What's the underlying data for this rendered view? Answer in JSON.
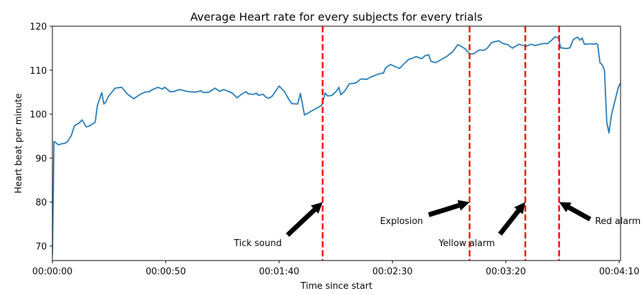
{
  "chart_data": {
    "type": "line",
    "title": "Average Heart rate for every subjects for every trials",
    "xlabel": "Time since start",
    "ylabel": "Heart beat per minute",
    "xlim": [
      0,
      250.6
    ],
    "ylim": [
      66.7,
      120
    ],
    "grid": false,
    "x_ticks": [
      {
        "value": 0,
        "label": "00:00:00"
      },
      {
        "value": 50,
        "label": "00:00:50"
      },
      {
        "value": 100,
        "label": "00:01:40"
      },
      {
        "value": 150,
        "label": "00:02:30"
      },
      {
        "value": 200,
        "label": "00:03:20"
      },
      {
        "value": 250,
        "label": "00:04:10"
      }
    ],
    "y_ticks": [
      {
        "value": 70,
        "label": "70"
      },
      {
        "value": 80,
        "label": "80"
      },
      {
        "value": 90,
        "label": "90"
      },
      {
        "value": 100,
        "label": "100"
      },
      {
        "value": 110,
        "label": "110"
      },
      {
        "value": 120,
        "label": "120"
      }
    ],
    "series": [
      {
        "name": "Average heart rate",
        "color": "#1f77b4",
        "x": [
          0,
          0.7,
          2.7,
          4.3,
          5.3,
          6.8,
          8.3,
          9.8,
          11.9,
          13.1,
          14.9,
          16.4,
          18.9,
          19.8,
          21.8,
          22.7,
          23.5,
          24.7,
          27.6,
          30.6,
          33.2,
          35.9,
          38.7,
          40.8,
          42.8,
          43.8,
          46.6,
          48.4,
          49.6,
          51.9,
          53.4,
          56.0,
          60.0,
          63.0,
          65.6,
          66.6,
          69.1,
          71.7,
          73.7,
          75.7,
          79.3,
          81.5,
          83.3,
          85.4,
          86.4,
          88.9,
          89.9,
          90.9,
          93.0,
          94.0,
          95.5,
          97.0,
          100.0,
          102.4,
          104.1,
          105.6,
          108.2,
          109.4,
          111.2,
          118.8,
          120.3,
          121.4,
          123.4,
          125.4,
          126.4,
          127.2,
          129.0,
          131.0,
          133.0,
          134.5,
          136.0,
          138.6,
          140.3,
          143.2,
          145.0,
          146.0,
          147.0,
          149.2,
          151.2,
          153.1,
          154.8,
          157.3,
          158.8,
          160.4,
          162.9,
          164.4,
          166.0,
          167.0,
          169.0,
          171.5,
          174.1,
          176.6,
          178.8,
          180.7,
          182.2,
          184.0,
          185.7,
          188.3,
          190.3,
          191.8,
          193.8,
          196.9,
          198.9,
          200.9,
          202.9,
          205.8,
          208.8,
          211.1,
          212.9,
          215.1,
          217.2,
          218.2,
          220.2,
          221.7,
          223.2,
          224.2,
          226.8,
          228.3,
          229.8,
          231.7,
          232.7,
          233.7,
          234.6,
          237.4,
          239.0,
          239.7,
          240.5,
          241.5,
          242.5,
          243.5,
          244.5,
          245.5,
          246.6,
          248.6,
          249.6,
          250.6
        ],
        "y": [
          68,
          93.8,
          93.0,
          93.3,
          93.3,
          93.8,
          95.1,
          97.4,
          98.0,
          98.7,
          97.1,
          97.3,
          98.2,
          101.9,
          104.9,
          102.3,
          102.7,
          104.0,
          105.9,
          106.1,
          104.5,
          103.5,
          104.5,
          105.0,
          105.1,
          105.5,
          106.1,
          105.7,
          106.1,
          105.1,
          105.1,
          105.6,
          105.1,
          105.0,
          105.3,
          104.9,
          105.0,
          105.9,
          105.2,
          105.6,
          104.8,
          103.7,
          104.5,
          105.1,
          104.6,
          104.5,
          104.8,
          104.3,
          104.5,
          103.9,
          103.6,
          104.1,
          106.4,
          105.1,
          103.5,
          102.4,
          102.3,
          104.7,
          99.8,
          102.0,
          104.8,
          104.1,
          104.3,
          105.3,
          106.1,
          104.4,
          105.3,
          106.9,
          107.0,
          107.3,
          108.0,
          107.9,
          108.4,
          109.0,
          109.3,
          109.3,
          110.6,
          111.3,
          110.8,
          110.4,
          111.3,
          112.5,
          112.7,
          113.1,
          112.6,
          113.3,
          113.5,
          112.0,
          111.7,
          112.4,
          113.2,
          114.2,
          115.8,
          115.3,
          114.8,
          113.7,
          113.7,
          114.6,
          114.5,
          115.0,
          116.3,
          116.7,
          116.0,
          115.8,
          115.0,
          115.9,
          115.4,
          115.9,
          115.6,
          115.9,
          116.1,
          116.0,
          116.8,
          117.6,
          117.3,
          115.1,
          114.9,
          115.1,
          117.0,
          117.5,
          116.8,
          117.3,
          115.9,
          116.0,
          115.9,
          116.1,
          115.8,
          111.7,
          111.2,
          110.0,
          98.3,
          95.7,
          99.8,
          104.0,
          106.1,
          107.1
        ]
      }
    ],
    "event_lines": {
      "color": "#ff0000",
      "x": [
        119.2,
        184.0,
        208.6,
        223.5
      ]
    },
    "annotations": [
      {
        "text": "Tick sound",
        "text_x": 90.6,
        "text_y": 70.8,
        "tail_x": 103.7,
        "tail_y": 72.5,
        "head_x": 119.2,
        "head_y": 80
      },
      {
        "text": "Explosion",
        "text_x": 154.0,
        "text_y": 75.8,
        "tail_x": 166.0,
        "tail_y": 77.1,
        "head_x": 184.0,
        "head_y": 80
      },
      {
        "text": "Yellow alarm",
        "text_x": 182.8,
        "text_y": 70.8,
        "tail_x": 197.4,
        "tail_y": 72.7,
        "head_x": 208.6,
        "head_y": 80
      },
      {
        "text": "Red alarm",
        "text_x": 249.4,
        "text_y": 75.8,
        "tail_x": 237.2,
        "tail_y": 76.1,
        "head_x": 223.5,
        "head_y": 80
      }
    ]
  }
}
